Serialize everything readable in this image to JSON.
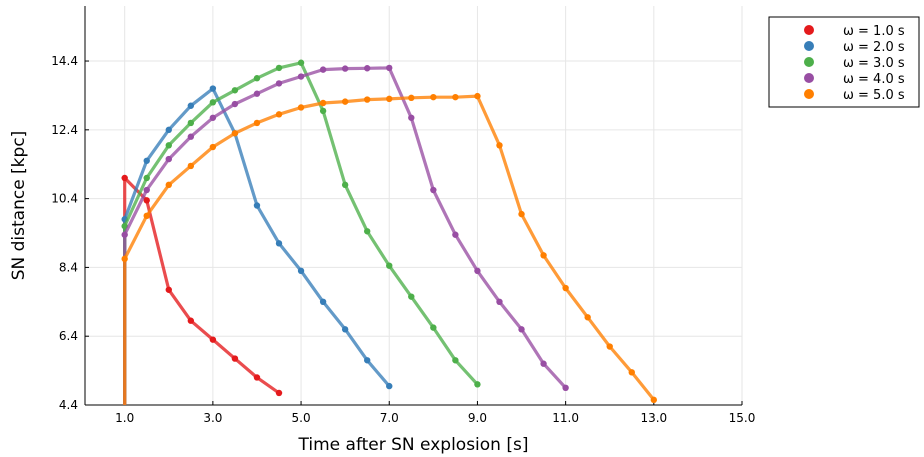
{
  "chart_data": {
    "type": "line",
    "title": "",
    "xlabel": "Time after SN explosion [s]",
    "ylabel": "SN distance [kpc]",
    "xlim": [
      0.1,
      15.0
    ],
    "ylim": [
      4.4,
      16.0
    ],
    "xticks": [
      1.0,
      3.0,
      5.0,
      7.0,
      9.0,
      11.0,
      13.0,
      15.0
    ],
    "xtick_labels": [
      "1.0",
      "3.0",
      "5.0",
      "7.0",
      "9.0",
      "11.0",
      "13.0",
      "15.0"
    ],
    "yticks": [
      4.4,
      6.4,
      8.4,
      10.4,
      12.4,
      14.4
    ],
    "ytick_labels": [
      "4.4",
      "6.4",
      "8.4",
      "10.4",
      "12.4",
      "14.4"
    ],
    "grid": true,
    "legend_position": "top-right",
    "series": [
      {
        "name": "ω = 1.0 s",
        "color": "#e41a1c",
        "x": [
          1.0,
          1.0,
          1.5,
          2.0,
          2.5,
          3.0,
          3.5,
          4.0,
          4.5
        ],
        "y": [
          4.4,
          11.0,
          10.35,
          7.75,
          6.85,
          6.3,
          5.75,
          5.2,
          4.75
        ]
      },
      {
        "name": "ω = 2.0 s",
        "color": "#377eb8",
        "x": [
          1.0,
          1.0,
          1.5,
          2.0,
          2.5,
          3.0,
          3.5,
          4.0,
          4.5,
          5.0,
          5.5,
          6.0,
          6.5,
          7.0
        ],
        "y": [
          4.4,
          9.8,
          11.5,
          12.4,
          13.1,
          13.6,
          12.3,
          10.2,
          9.1,
          8.3,
          7.4,
          6.6,
          5.7,
          4.95
        ]
      },
      {
        "name": "ω = 3.0 s",
        "color": "#4daf4a",
        "x": [
          1.0,
          1.0,
          1.5,
          2.0,
          2.5,
          3.0,
          3.5,
          4.0,
          4.5,
          5.0,
          5.5,
          6.0,
          6.5,
          7.0,
          7.5,
          8.0,
          8.5,
          9.0
        ],
        "y": [
          4.4,
          9.6,
          11.0,
          11.95,
          12.6,
          13.2,
          13.55,
          13.9,
          14.2,
          14.35,
          12.95,
          10.8,
          9.45,
          8.45,
          7.55,
          6.65,
          5.7,
          5.0
        ]
      },
      {
        "name": "ω = 4.0 s",
        "color": "#984ea3",
        "x": [
          1.0,
          1.0,
          1.5,
          2.0,
          2.5,
          3.0,
          3.5,
          4.0,
          4.5,
          5.0,
          5.5,
          6.0,
          6.5,
          7.0,
          7.5,
          8.0,
          8.5,
          9.0,
          9.5,
          10.0,
          10.5,
          11.0
        ],
        "y": [
          4.4,
          9.35,
          10.65,
          11.55,
          12.2,
          12.75,
          13.15,
          13.45,
          13.75,
          13.95,
          14.15,
          14.18,
          14.19,
          14.2,
          12.75,
          10.65,
          9.35,
          8.3,
          7.4,
          6.6,
          5.6,
          4.9
        ]
      },
      {
        "name": "ω = 5.0 s",
        "color": "#ff7f00",
        "x": [
          1.0,
          1.0,
          1.5,
          2.0,
          2.5,
          3.0,
          3.5,
          4.0,
          4.5,
          5.0,
          5.5,
          6.0,
          6.5,
          7.0,
          7.5,
          8.0,
          8.5,
          9.0,
          9.5,
          10.0,
          10.5,
          11.0,
          11.5,
          12.0,
          12.5,
          13.0
        ],
        "y": [
          4.4,
          8.65,
          9.9,
          10.8,
          11.35,
          11.9,
          12.3,
          12.6,
          12.85,
          13.05,
          13.18,
          13.22,
          13.28,
          13.3,
          13.33,
          13.35,
          13.35,
          13.38,
          11.95,
          9.95,
          8.75,
          7.8,
          6.95,
          6.1,
          5.35,
          4.55
        ]
      }
    ]
  }
}
